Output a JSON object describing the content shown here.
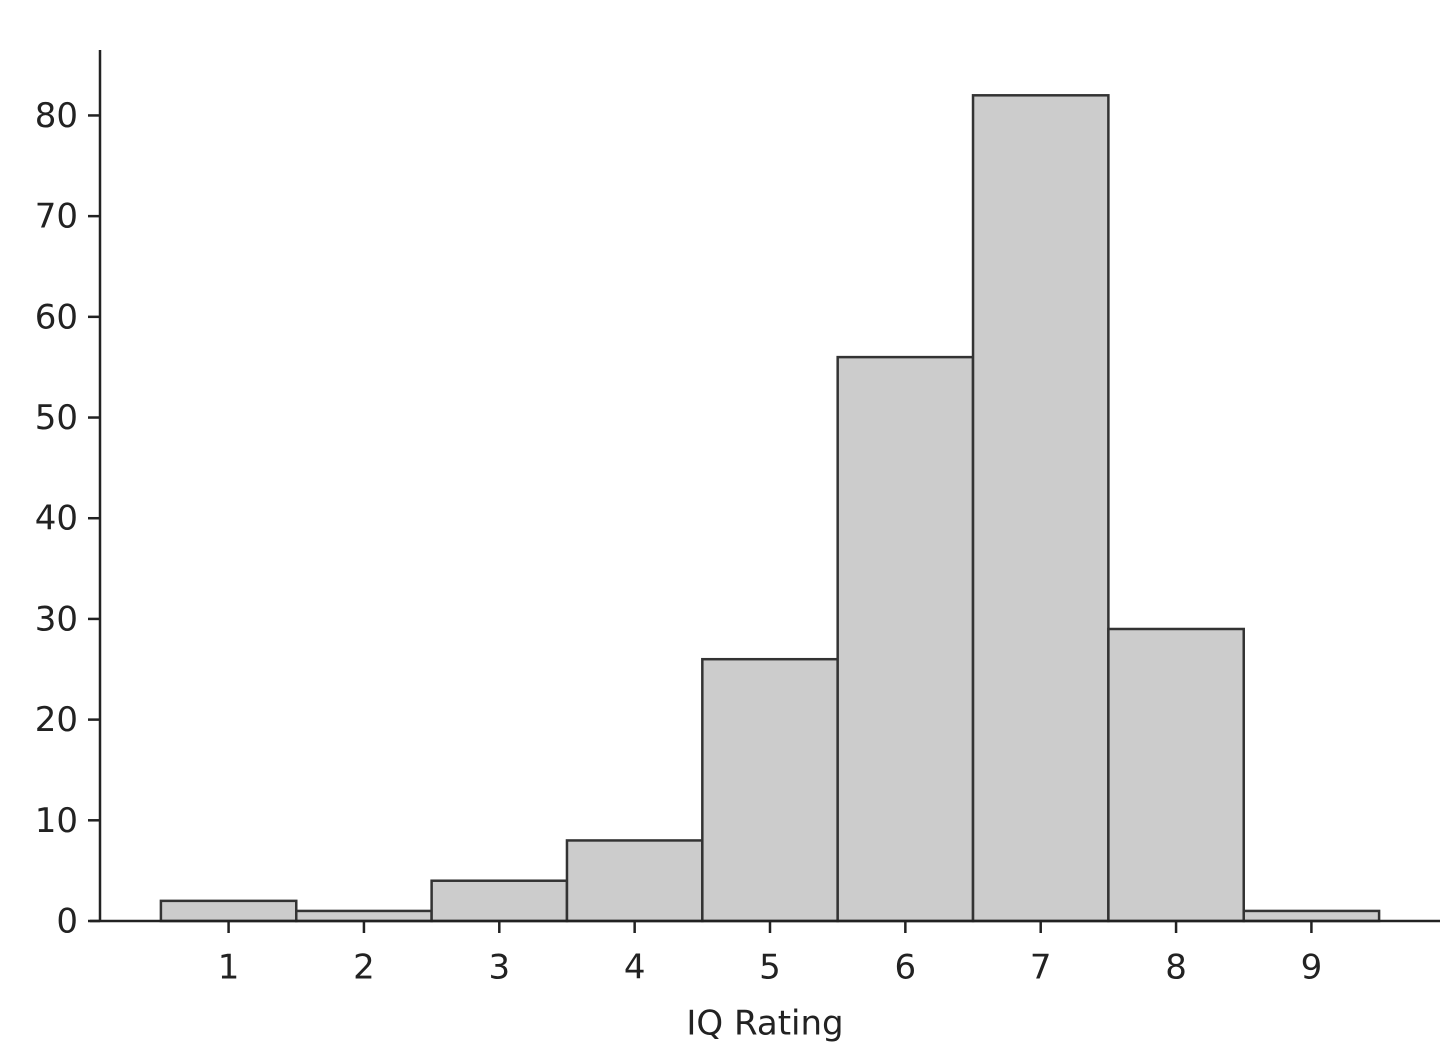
{
  "chart_data": {
    "type": "histogram",
    "bins": [
      0.5,
      1.5,
      2.5,
      3.5,
      4.5,
      5.5,
      6.5,
      7.5,
      8.5,
      9.5
    ],
    "values": [
      2,
      1,
      4,
      8,
      26,
      56,
      82,
      29,
      1
    ],
    "color": "#cccccc",
    "edgecolor": "#333333",
    "xlabel": "IQ Rating",
    "xlim": [
      0.05,
      9.95
    ],
    "xticks": [
      1,
      2,
      3,
      4,
      5,
      6,
      7,
      8,
      9
    ],
    "ylim": [
      0,
      86.5
    ],
    "yticks": [
      0,
      10,
      20,
      30,
      40,
      50,
      60,
      70,
      80
    ],
    "grid": false
  }
}
